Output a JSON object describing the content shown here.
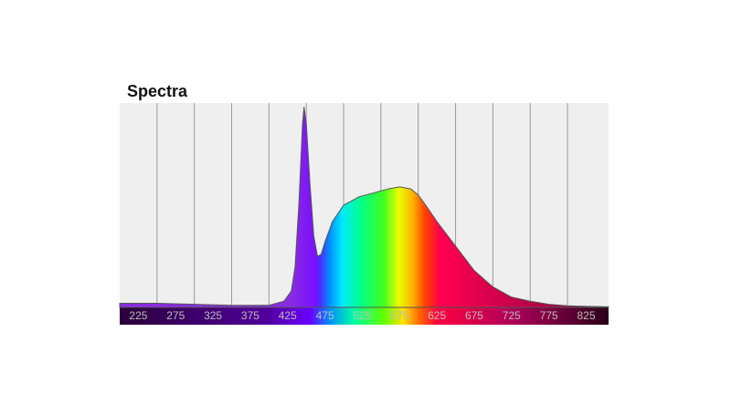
{
  "chart_data": {
    "type": "area",
    "title": "Spectra",
    "x": [
      200,
      250,
      300,
      350,
      400,
      420,
      430,
      435,
      440,
      445,
      447,
      450,
      455,
      460,
      465,
      470,
      475,
      485,
      500,
      520,
      540,
      560,
      575,
      590,
      600,
      610,
      625,
      650,
      675,
      700,
      725,
      750,
      775,
      800,
      825,
      855
    ],
    "values": [
      0.02,
      0.02,
      0.015,
      0.01,
      0.01,
      0.03,
      0.08,
      0.2,
      0.5,
      0.9,
      0.98,
      0.9,
      0.6,
      0.35,
      0.25,
      0.26,
      0.32,
      0.42,
      0.5,
      0.54,
      0.56,
      0.58,
      0.59,
      0.58,
      0.55,
      0.5,
      0.42,
      0.3,
      0.18,
      0.1,
      0.05,
      0.03,
      0.015,
      0.008,
      0.005,
      0.003
    ],
    "xlim": [
      200,
      855
    ],
    "ylim": [
      0,
      1
    ],
    "xticks": [
      225,
      275,
      325,
      375,
      425,
      475,
      525,
      575,
      625,
      675,
      725,
      775,
      825
    ],
    "xgrid": [
      250,
      300,
      350,
      400,
      450,
      500,
      550,
      600,
      650,
      700,
      750,
      800
    ]
  }
}
